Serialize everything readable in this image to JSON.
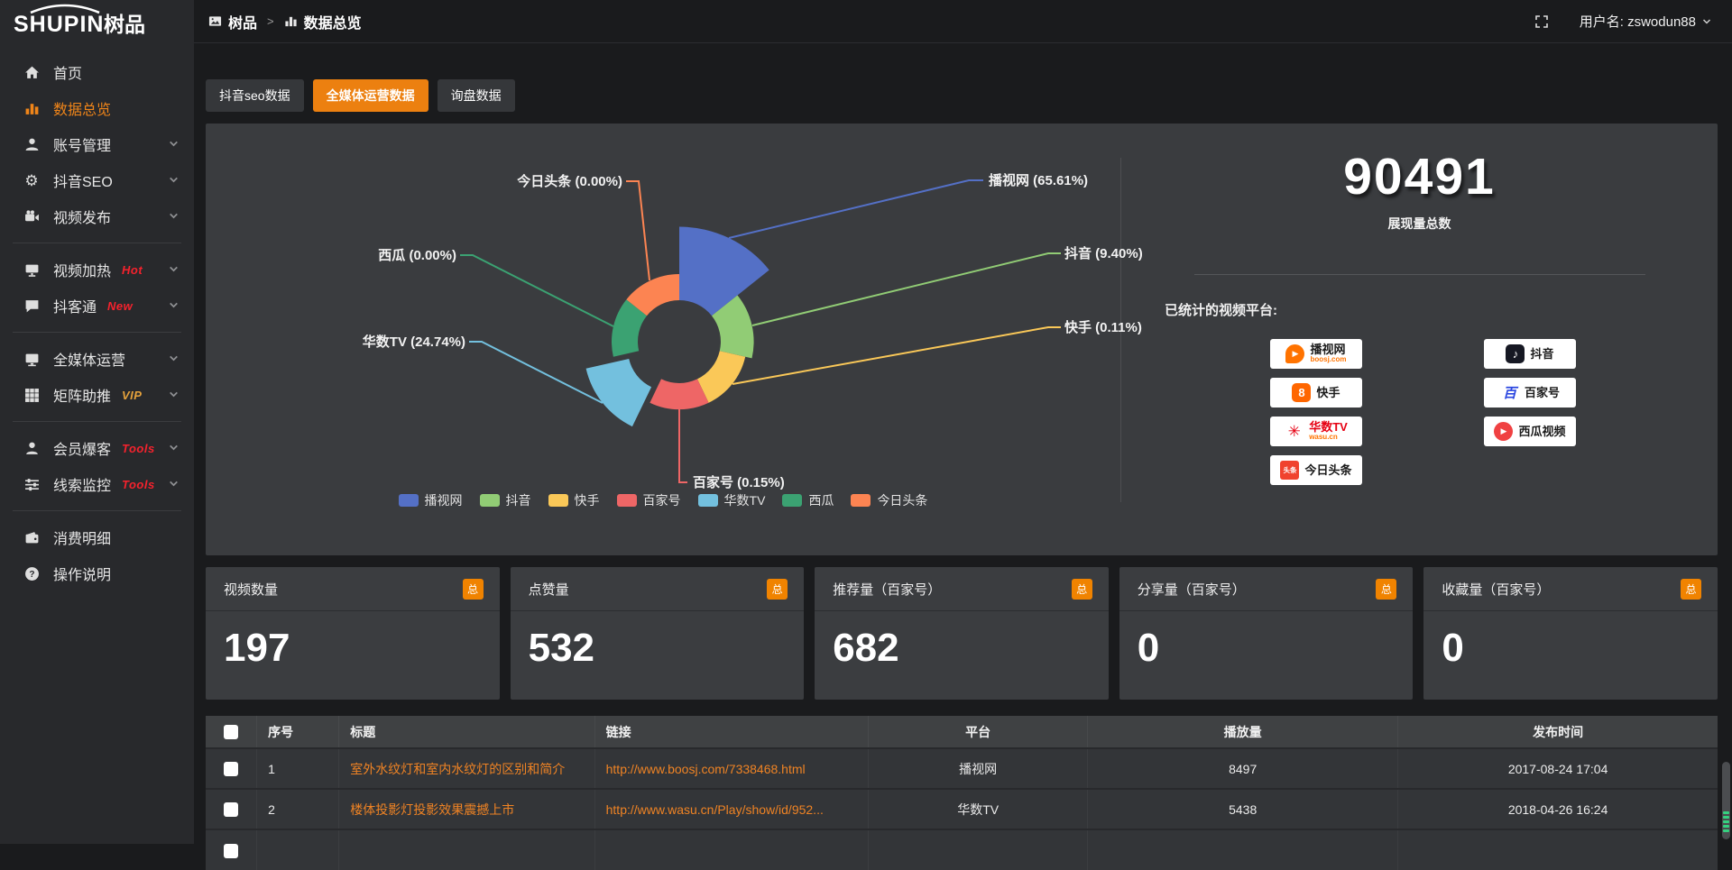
{
  "app": {
    "logo_en": "SHUPIN",
    "logo_cn": "树品"
  },
  "topbar": {
    "breadcrumb_root": "树品",
    "breadcrumb_sep": ">",
    "breadcrumb_current": "数据总览",
    "username": "用户名: zswodun88"
  },
  "tabs": [
    {
      "label": "抖音seo数据",
      "active": false
    },
    {
      "label": "全媒体运营数据",
      "active": true
    },
    {
      "label": "询盘数据",
      "active": false
    }
  ],
  "sidebar": {
    "items": [
      {
        "key": "home",
        "label": "首页",
        "icon": "home-icon"
      },
      {
        "key": "data-overview",
        "label": "数据总览",
        "icon": "bar-chart-icon",
        "active": true
      },
      {
        "key": "account-manage",
        "label": "账号管理",
        "icon": "user-icon",
        "expandable": true
      },
      {
        "key": "douyin-seo",
        "label": "抖音SEO",
        "icon": "gear-icon",
        "expandable": true
      },
      {
        "key": "video-publish",
        "label": "视频发布",
        "icon": "video-camera-icon",
        "expandable": true
      },
      {
        "divider": true
      },
      {
        "key": "video-heat",
        "label": "视频加热",
        "icon": "screen-icon",
        "badge": "Hot",
        "badge_color": "#f5222d",
        "expandable": true
      },
      {
        "key": "douketong",
        "label": "抖客通",
        "icon": "chat-icon",
        "badge": "New",
        "badge_color": "#f5222d",
        "expandable": true
      },
      {
        "divider": true
      },
      {
        "key": "media-operation",
        "label": "全媒体运营",
        "icon": "monitor-icon",
        "expandable": true
      },
      {
        "key": "matrix-boost",
        "label": "矩阵助推",
        "icon": "grid-icon",
        "badge": "VIP",
        "badge_color": "#e6a23c",
        "expandable": true
      },
      {
        "divider": true
      },
      {
        "key": "member-baoke",
        "label": "会员爆客",
        "icon": "member-icon",
        "badge": "Tools",
        "badge_color": "#f5222d",
        "expandable": true
      },
      {
        "key": "clue-monitor",
        "label": "线索监控",
        "icon": "sliders-icon",
        "badge": "Tools",
        "badge_color": "#f5222d",
        "expandable": true
      },
      {
        "divider": true
      },
      {
        "key": "consume-detail",
        "label": "消费明细",
        "icon": "wallet-icon"
      },
      {
        "key": "help",
        "label": "操作说明",
        "icon": "question-icon"
      }
    ]
  },
  "chart_data": {
    "type": "pie",
    "subtype": "nightingale-rose",
    "legend_position": "bottom",
    "series": [
      {
        "name": "播视网",
        "percent": 65.61,
        "label": "播视网 (65.61%)",
        "color": "#5470c6"
      },
      {
        "name": "抖音",
        "percent": 9.4,
        "label": "抖音 (9.40%)",
        "color": "#91cc75"
      },
      {
        "name": "快手",
        "percent": 0.11,
        "label": "快手 (0.11%)",
        "color": "#fac858"
      },
      {
        "name": "百家号",
        "percent": 0.15,
        "label": "百家号 (0.15%)",
        "color": "#ee6666"
      },
      {
        "name": "华数TV",
        "percent": 24.74,
        "label": "华数TV (24.74%)",
        "color": "#73c0de",
        "selected": true
      },
      {
        "name": "西瓜",
        "percent": 0.0,
        "label": "西瓜 (0.00%)",
        "color": "#3ba272"
      },
      {
        "name": "今日头条",
        "percent": 0.0,
        "label": "今日头条 (0.00%)",
        "color": "#fc8452"
      }
    ]
  },
  "summary": {
    "total_value": "90491",
    "total_label": "展现量总数",
    "platforms_title": "已统计的视频平台:",
    "platform_badges_left": [
      {
        "key": "boosj",
        "name": "播视网",
        "sub": "boosj.com"
      },
      {
        "key": "kuaishou",
        "name": "快手"
      },
      {
        "key": "wasu",
        "name": "华数TV",
        "sub": "wasu.cn"
      },
      {
        "key": "toutiao",
        "name": "今日头条"
      }
    ],
    "platform_badges_right": [
      {
        "key": "douyin",
        "name": "抖音"
      },
      {
        "key": "baijiahao",
        "name": "百家号"
      },
      {
        "key": "xigua",
        "name": "西瓜视频"
      }
    ]
  },
  "cards": [
    {
      "title": "视频数量",
      "badge": "总",
      "value": "197"
    },
    {
      "title": "点赞量",
      "badge": "总",
      "value": "532"
    },
    {
      "title": "推荐量（百家号）",
      "badge": "总",
      "value": "682"
    },
    {
      "title": "分享量（百家号）",
      "badge": "总",
      "value": "0"
    },
    {
      "title": "收藏量（百家号）",
      "badge": "总",
      "value": "0"
    }
  ],
  "table": {
    "headers": [
      "序号",
      "标题",
      "链接",
      "平台",
      "播放量",
      "发布时间"
    ],
    "rows": [
      {
        "index": "1",
        "title": "室外水纹灯和室内水纹灯的区别和简介",
        "link": "http://www.boosj.com/7338468.html",
        "platform": "播视网",
        "plays": "8497",
        "time": "2017-08-24 17:04"
      },
      {
        "index": "2",
        "title": "楼体投影灯投影效果震撼上市",
        "link": "http://www.wasu.cn/Play/show/id/952...",
        "platform": "华数TV",
        "plays": "5438",
        "time": "2018-04-26 16:24"
      },
      {
        "index": "",
        "title": "",
        "link": "",
        "platform": "",
        "plays": "",
        "time": ""
      }
    ]
  }
}
